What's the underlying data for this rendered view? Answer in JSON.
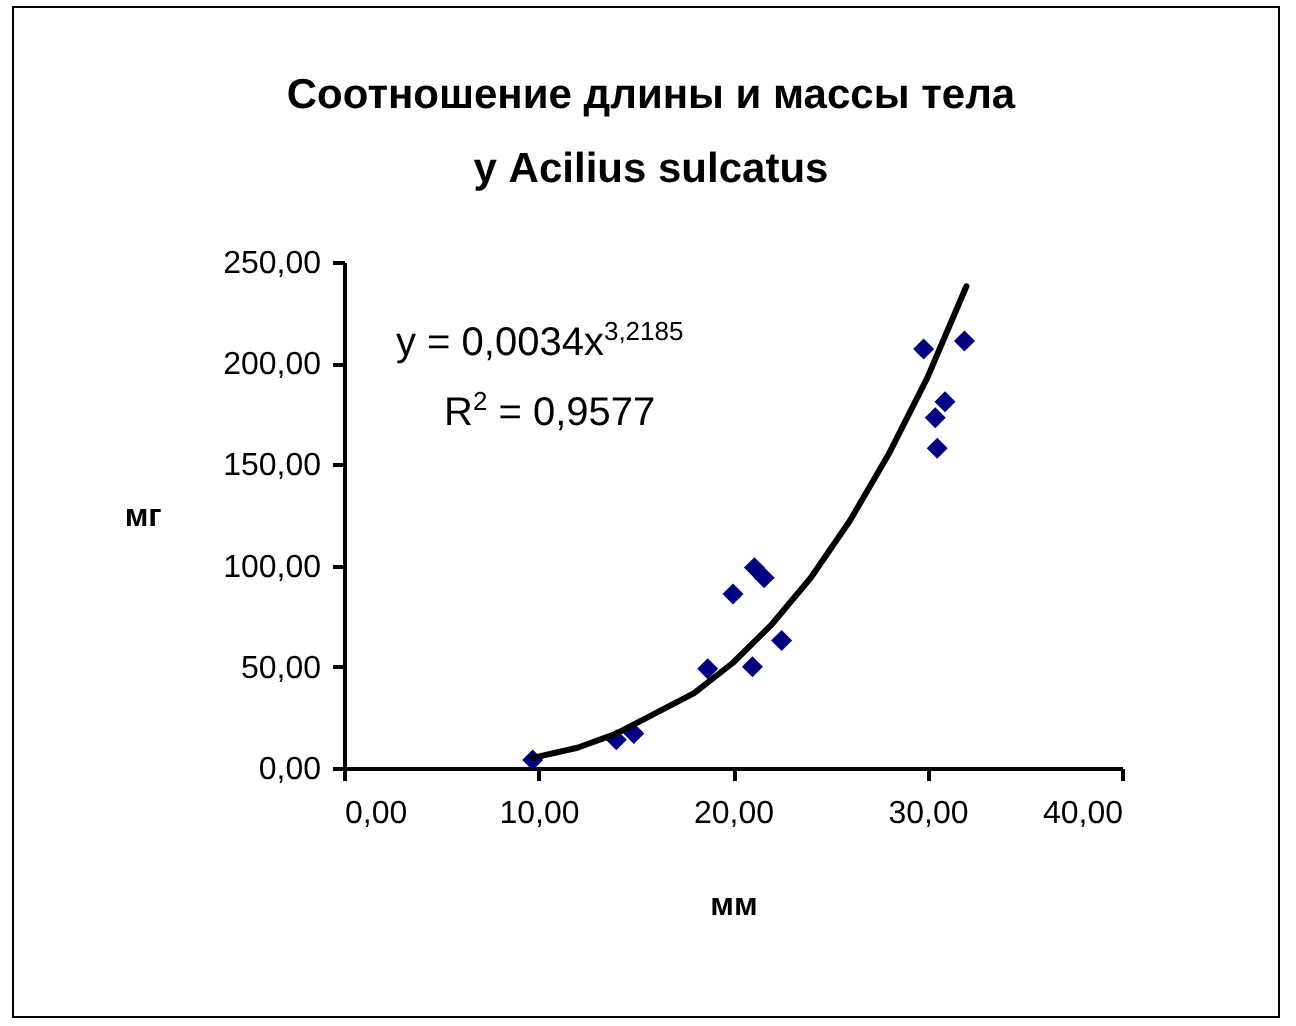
{
  "chart_data": {
    "type": "scatter",
    "title": [
      "Соотношение длины и массы тела",
      "у Acilius sulcatus"
    ],
    "xlabel": "мм",
    "ylabel": "мг",
    "xlim": [
      0,
      40
    ],
    "xticks": [
      {
        "value": 0,
        "label": "0,00"
      },
      {
        "value": 10,
        "label": "10,00"
      },
      {
        "value": 20,
        "label": "20,00"
      },
      {
        "value": 30,
        "label": "30,00"
      },
      {
        "value": 40,
        "label": "40,00"
      }
    ],
    "ylim": [
      0,
      250
    ],
    "yticks": [
      {
        "value": 0,
        "label": "0,00"
      },
      {
        "value": 50,
        "label": "50,00"
      },
      {
        "value": 100,
        "label": "100,00"
      },
      {
        "value": 150,
        "label": "150,00"
      },
      {
        "value": 200,
        "label": "200,00"
      },
      {
        "value": 250,
        "label": "250,00"
      }
    ],
    "grid": false,
    "annotations": [
      "y = 0,0034x$^{3,2185}$",
      "R$^{2}$ = 0,9577"
    ],
    "series": [
      {
        "marker": "diamond",
        "color": "#000080",
        "x": [
          9.7,
          14,
          14.9,
          18.7,
          20,
          21,
          21.1,
          21.6,
          22.5,
          29.8,
          30.4,
          30.9,
          30.5,
          31.9
        ],
        "values": [
          4,
          14,
          17,
          49,
          86,
          50,
          99,
          94,
          63,
          207,
          173,
          181,
          158,
          211
        ]
      },
      {
        "type": "line",
        "marker": "none",
        "color": "#000000",
        "x": [
          9.7,
          12,
          14,
          18,
          20,
          22,
          24,
          26,
          28,
          30,
          32
        ],
        "values": [
          5,
          10,
          17,
          37,
          52,
          71,
          94,
          122,
          155,
          193,
          238
        ]
      }
    ]
  }
}
